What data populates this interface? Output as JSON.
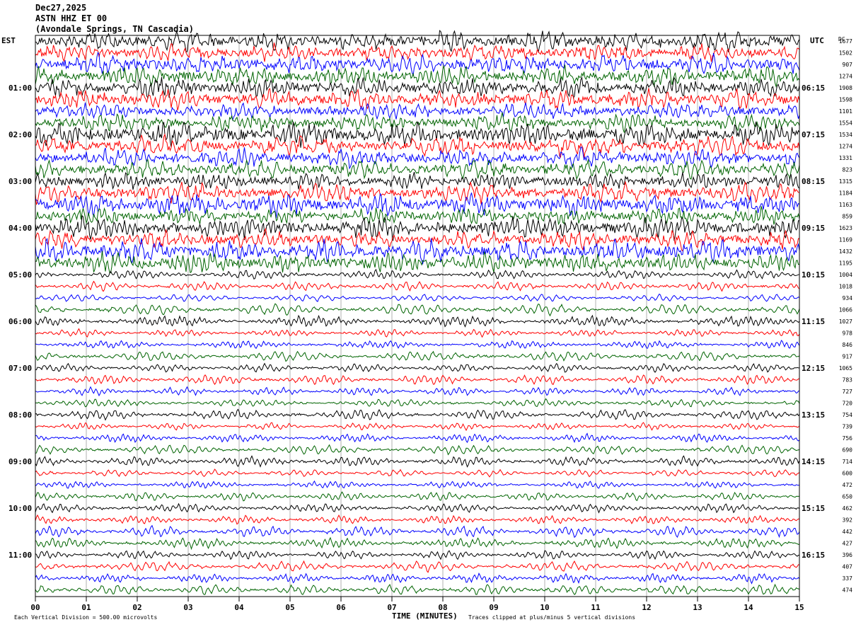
{
  "header": {
    "date": "Dec27,2025",
    "station": "ASTN HHZ ET 00",
    "location": "(Avondale Springs, TN Cascadia)"
  },
  "left_tz": "EST",
  "right_tz": "UTC",
  "dc_header": "DC",
  "footer": {
    "division": "Each Vertical Division =  500.00 microvolts",
    "xlabel": "TIME (MINUTES)",
    "clip": "Traces clipped at plus/minus 5 vertical divisions"
  },
  "colors": [
    "#000000",
    "#ff0000",
    "#0000ff",
    "#006400"
  ],
  "chart_data": {
    "type": "line",
    "title": "ASTN HHZ ET 00",
    "xlabel": "TIME (MINUTES)",
    "xlim": [
      0,
      15
    ],
    "x_ticks": [
      "00",
      "01",
      "02",
      "03",
      "04",
      "05",
      "06",
      "07",
      "08",
      "09",
      "10",
      "11",
      "12",
      "13",
      "14",
      "15"
    ],
    "left_hour_labels": [
      "01:00",
      "02:00",
      "03:00",
      "04:00",
      "05:00",
      "06:00",
      "07:00",
      "08:00",
      "09:00",
      "10:00",
      "11:00"
    ],
    "right_hour_labels": [
      "06:15",
      "07:15",
      "08:15",
      "09:15",
      "10:15",
      "11:15",
      "12:15",
      "13:15",
      "14:15",
      "15:15",
      "16:15"
    ],
    "trace_count": 48,
    "trace_color_cycle": [
      "black",
      "red",
      "blue",
      "green"
    ],
    "dc_offsets": [
      1677,
      1502,
      907,
      1274,
      1908,
      1598,
      1101,
      1554,
      1534,
      1274,
      1331,
      823,
      1315,
      1184,
      1163,
      859,
      1623,
      1169,
      1432,
      1195,
      1004,
      1018,
      934,
      1066,
      1027,
      978,
      846,
      917,
      1065,
      783,
      727,
      720,
      754,
      739,
      756,
      690,
      714,
      600,
      472,
      650,
      462,
      392,
      442,
      427,
      396,
      407,
      337,
      474
    ]
  }
}
